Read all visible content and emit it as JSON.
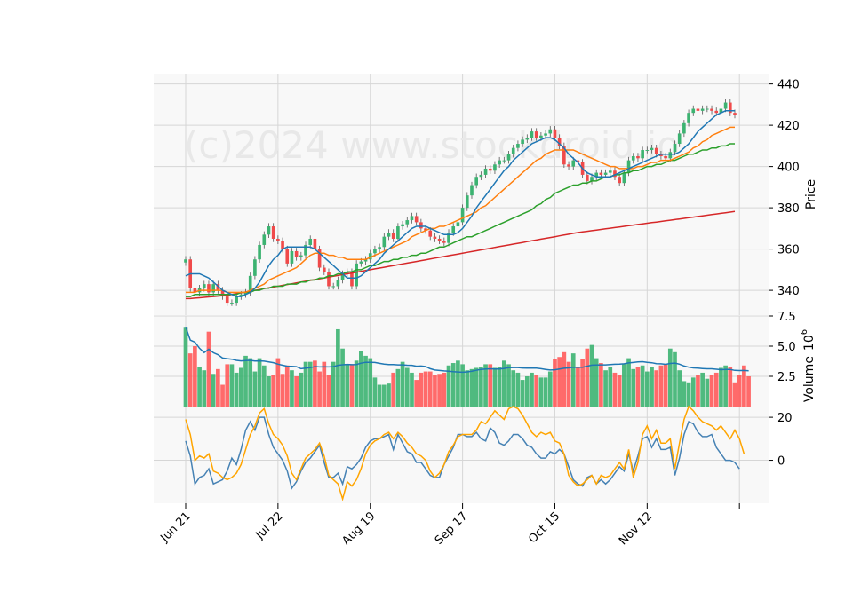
{
  "watermark": "(c)2024 www.stockdroid.io",
  "chart_data": [
    {
      "type": "candlestick",
      "panel": "price",
      "ylabel": "Price",
      "ylim": [
        328,
        445
      ],
      "yticks": [
        340,
        360,
        380,
        400,
        420,
        440
      ],
      "grid": true,
      "x_dates": [
        "Jun 21",
        "Jun 24",
        "Jun 25",
        "Jun 26",
        "Jun 27",
        "Jun 28",
        "Jul 1",
        "Jul 2",
        "Jul 3",
        "Jul 5",
        "Jul 8",
        "Jul 9",
        "Jul 10",
        "Jul 11",
        "Jul 12",
        "Jul 15",
        "Jul 16",
        "Jul 17",
        "Jul 18",
        "Jul 19",
        "Jul 22",
        "Jul 23",
        "Jul 24",
        "Jul 25",
        "Jul 26",
        "Jul 29",
        "Jul 30",
        "Jul 31",
        "Aug 1",
        "Aug 2",
        "Aug 5",
        "Aug 6",
        "Aug 7",
        "Aug 8",
        "Aug 9",
        "Aug 12",
        "Aug 13",
        "Aug 14",
        "Aug 15",
        "Aug 16",
        "Aug 19",
        "Aug 20",
        "Aug 21",
        "Aug 22",
        "Aug 23",
        "Aug 26",
        "Aug 27",
        "Aug 28",
        "Aug 29",
        "Aug 30",
        "Sep 3",
        "Sep 4",
        "Sep 5",
        "Sep 6",
        "Sep 9",
        "Sep 10",
        "Sep 11",
        "Sep 12",
        "Sep 13",
        "Sep 16",
        "Sep 17",
        "Sep 18",
        "Sep 19",
        "Sep 20",
        "Sep 23",
        "Sep 24",
        "Sep 25",
        "Sep 26",
        "Sep 27",
        "Sep 30",
        "Oct 1",
        "Oct 2",
        "Oct 3",
        "Oct 4",
        "Oct 7",
        "Oct 8",
        "Oct 9",
        "Oct 10",
        "Oct 11",
        "Oct 14",
        "Oct 15",
        "Oct 16",
        "Oct 17",
        "Oct 18",
        "Oct 21",
        "Oct 22",
        "Oct 23",
        "Oct 24",
        "Oct 25",
        "Oct 28",
        "Oct 29",
        "Oct 30",
        "Oct 31",
        "Nov 1",
        "Nov 4",
        "Nov 5",
        "Nov 6",
        "Nov 7",
        "Nov 8",
        "Nov 11",
        "Nov 12",
        "Nov 13",
        "Nov 14",
        "Nov 15",
        "Nov 18",
        "Nov 19",
        "Nov 20",
        "Nov 21",
        "Nov 22",
        "Nov 25",
        "Nov 26",
        "Nov 27",
        "Nov 29",
        "Dec 2",
        "Dec 3",
        "Dec 4",
        "Dec 5",
        "Dec 6",
        "Dec 9",
        "Dec 10"
      ],
      "xticks": [
        {
          "label": "Jun 21",
          "index": 0
        },
        {
          "label": "Jul 22",
          "index": 20
        },
        {
          "label": "Aug 19",
          "index": 40
        },
        {
          "label": "Sep 17",
          "index": 60
        },
        {
          "label": "Oct 15",
          "index": 80
        },
        {
          "label": "Nov 12",
          "index": 100
        },
        {
          "label": "",
          "index": 120
        }
      ],
      "close": [
        355,
        341,
        339,
        341,
        343,
        339,
        343,
        340,
        337,
        334,
        334,
        337,
        338,
        339,
        347,
        355,
        362,
        367,
        371,
        365,
        364,
        360,
        353,
        359,
        356,
        357,
        362,
        365,
        360,
        351,
        349,
        342,
        342,
        345,
        348,
        349,
        342,
        353,
        354,
        355,
        358,
        360,
        361,
        366,
        368,
        365,
        371,
        372,
        374,
        376,
        373,
        370,
        369,
        366,
        365,
        364,
        363,
        368,
        371,
        373,
        380,
        386,
        391,
        395,
        396,
        399,
        398,
        401,
        403,
        403,
        406,
        409,
        411,
        413,
        414,
        417,
        414,
        415,
        416,
        418,
        414,
        410,
        401,
        400,
        403,
        402,
        396,
        393,
        395,
        397,
        396,
        397,
        398,
        395,
        392,
        397,
        403,
        405,
        404,
        408,
        408,
        409,
        406,
        405,
        404,
        407,
        411,
        416,
        421,
        426,
        428,
        427,
        428,
        428,
        427,
        426,
        428,
        431,
        426,
        425
      ],
      "ma_colors": {
        "ma10": "#1f77b4",
        "ma20": "#ff7f0e",
        "ma50": "#2ca02c",
        "ma200": "#d62728"
      },
      "ma10": [
        347,
        348,
        348,
        348,
        347,
        346,
        344,
        342,
        340,
        339,
        338,
        337,
        337,
        338,
        339,
        341,
        344,
        348,
        352,
        355,
        357,
        360,
        361,
        361,
        361,
        361,
        361,
        361,
        360,
        358,
        356,
        354,
        352,
        350,
        348,
        346,
        346,
        346,
        347,
        349,
        351,
        353,
        355,
        358,
        360,
        362,
        364,
        366,
        368,
        370,
        371,
        371,
        371,
        370,
        369,
        368,
        367,
        367,
        367,
        368,
        370,
        373,
        376,
        380,
        383,
        386,
        389,
        392,
        395,
        398,
        400,
        403,
        405,
        407,
        409,
        411,
        412,
        413,
        414,
        414,
        413,
        411,
        409,
        406,
        404,
        402,
        399,
        397,
        396,
        395,
        395,
        395,
        395,
        396,
        397,
        398,
        399,
        400,
        401,
        402,
        403,
        404,
        405,
        406,
        406,
        406,
        406,
        407,
        409,
        411,
        414,
        417,
        419,
        421,
        423,
        425,
        426,
        427,
        427,
        427
      ],
      "ma20": [
        339,
        339,
        339,
        340,
        340,
        340,
        340,
        340,
        340,
        339,
        339,
        339,
        339,
        339,
        340,
        341,
        342,
        343,
        345,
        346,
        347,
        348,
        349,
        350,
        351,
        353,
        355,
        357,
        358,
        358,
        358,
        357,
        357,
        356,
        356,
        355,
        355,
        355,
        355,
        355,
        356,
        357,
        358,
        359,
        360,
        361,
        362,
        363,
        364,
        366,
        367,
        368,
        369,
        370,
        370,
        371,
        371,
        372,
        373,
        374,
        375,
        376,
        377,
        378,
        380,
        381,
        383,
        385,
        387,
        389,
        391,
        393,
        395,
        397,
        399,
        401,
        403,
        404,
        406,
        407,
        408,
        408,
        408,
        408,
        408,
        407,
        406,
        405,
        404,
        403,
        402,
        401,
        400,
        400,
        399,
        399,
        399,
        399,
        400,
        400,
        401,
        402,
        402,
        403,
        403,
        403,
        404,
        405,
        406,
        407,
        409,
        410,
        412,
        413,
        415,
        416,
        417,
        418,
        419,
        419
      ],
      "ma50": [
        337,
        337,
        338,
        338,
        338,
        338,
        338,
        338,
        338,
        338,
        338,
        338,
        339,
        339,
        339,
        340,
        340,
        341,
        341,
        342,
        342,
        342,
        343,
        343,
        343,
        344,
        344,
        345,
        345,
        346,
        346,
        347,
        347,
        348,
        348,
        349,
        349,
        350,
        350,
        351,
        352,
        352,
        353,
        354,
        354,
        355,
        355,
        356,
        356,
        357,
        357,
        358,
        358,
        359,
        360,
        361,
        361,
        362,
        363,
        364,
        365,
        366,
        366,
        367,
        368,
        369,
        370,
        371,
        372,
        373,
        374,
        375,
        376,
        377,
        378,
        379,
        381,
        382,
        384,
        385,
        387,
        388,
        389,
        390,
        391,
        391,
        392,
        392,
        393,
        393,
        394,
        395,
        395,
        396,
        396,
        397,
        397,
        398,
        398,
        399,
        400,
        400,
        401,
        401,
        402,
        403,
        403,
        404,
        405,
        406,
        406,
        407,
        408,
        408,
        409,
        409,
        410,
        410,
        411,
        411
      ],
      "ma200": [
        336,
        336,
        336.2,
        336.4,
        336.6,
        336.8,
        337,
        337.2,
        337.4,
        337.6,
        338,
        338.4,
        338.8,
        339.2,
        339.6,
        340,
        340.4,
        340.8,
        341.2,
        341.6,
        342,
        342.4,
        342.8,
        343.2,
        343.6,
        344,
        344.4,
        344.8,
        345.2,
        345.6,
        346,
        346.4,
        346.8,
        347.2,
        347.6,
        348,
        348.4,
        348.8,
        349.2,
        349.6,
        350,
        350.4,
        350.8,
        351.2,
        351.6,
        352,
        352.4,
        352.8,
        353.2,
        353.6,
        354,
        354.4,
        354.8,
        355.2,
        355.6,
        356,
        356.4,
        356.8,
        357.2,
        357.6,
        358,
        358.4,
        358.8,
        359.2,
        359.6,
        360,
        360.4,
        360.8,
        361.2,
        361.6,
        362,
        362.4,
        362.8,
        363.2,
        363.6,
        364,
        364.4,
        364.8,
        365.2,
        365.6,
        366,
        366.4,
        366.8,
        367.2,
        367.6,
        368,
        368.3,
        368.6,
        368.9,
        369.2,
        369.5,
        369.8,
        370.1,
        370.4,
        370.7,
        371,
        371.3,
        371.6,
        371.9,
        372.2,
        372.5,
        372.8,
        373.1,
        373.4,
        373.7,
        374,
        374.3,
        374.6,
        374.9,
        375.2,
        375.5,
        375.8,
        376.1,
        376.4,
        376.7,
        377,
        377.3,
        377.6,
        377.9,
        378.2
      ]
    },
    {
      "type": "bar",
      "panel": "volume",
      "ylabel": "Volume",
      "yunit": "10^6",
      "ylim": [
        0,
        7.5
      ],
      "yticks": [
        2.5,
        5.0,
        7.5
      ],
      "values": [
        6.6,
        4.4,
        5.0,
        3.3,
        3.0,
        6.2,
        2.7,
        3.1,
        1.8,
        3.5,
        3.5,
        2.8,
        3.2,
        4.2,
        4.0,
        2.9,
        4.0,
        3.4,
        2.5,
        2.6,
        4.0,
        2.7,
        3.4,
        3.0,
        2.5,
        2.8,
        3.7,
        3.7,
        3.8,
        2.9,
        3.7,
        2.6,
        3.7,
        6.4,
        4.8,
        3.5,
        3.5,
        3.8,
        4.6,
        4.2,
        4.0,
        2.4,
        1.8,
        1.8,
        1.9,
        2.8,
        3.1,
        3.7,
        3.2,
        2.8,
        2.2,
        2.8,
        2.9,
        2.9,
        2.6,
        2.7,
        2.8,
        3.4,
        3.6,
        3.8,
        3.5,
        3.0,
        3.1,
        3.2,
        3.3,
        3.5,
        3.5,
        3.2,
        3.3,
        3.8,
        3.5,
        3.0,
        2.8,
        2.2,
        2.5,
        2.8,
        2.6,
        2.4,
        2.4,
        2.9,
        3.9,
        4.1,
        4.5,
        3.7,
        4.4,
        3.3,
        3.9,
        4.8,
        5.1,
        4.0,
        3.6,
        3.0,
        3.3,
        2.8,
        2.6,
        3.5,
        4.0,
        3.1,
        3.3,
        3.4,
        2.9,
        3.3,
        3.0,
        3.4,
        3.5,
        4.8,
        4.5,
        3.0,
        2.1,
        2.0,
        2.4,
        2.6,
        2.8,
        2.3,
        2.6,
        2.8,
        3.2,
        3.4,
        3.3,
        2.0,
        2.6,
        3.4,
        2.5
      ],
      "ma_color": "#1f77b4"
    },
    {
      "type": "line",
      "panel": "oscillator",
      "yticks": [
        0,
        20
      ],
      "ylim": [
        -20,
        25
      ],
      "series": [
        {
          "color": "#4682b4",
          "values": [
            9,
            2,
            -11,
            -8,
            -7,
            -4,
            -11,
            -10,
            -9,
            -5,
            1,
            -2,
            5,
            14,
            18,
            14,
            20,
            20,
            12,
            6,
            3,
            0,
            -5,
            -13,
            -10,
            -5,
            -1,
            1,
            4,
            7,
            -1,
            -8,
            -8,
            -6,
            -11,
            -3,
            -4,
            -2,
            1,
            6,
            9,
            10,
            10,
            11,
            12,
            5,
            12,
            8,
            4,
            3,
            -1,
            -1,
            -4,
            -7,
            -8,
            -8,
            -2,
            2,
            6,
            12,
            12,
            11,
            11,
            13,
            10,
            9,
            15,
            13,
            8,
            7,
            9,
            12,
            12,
            10,
            7,
            6,
            3,
            1,
            1,
            4,
            3,
            5,
            3,
            -3,
            -9,
            -11,
            -12,
            -8,
            -7,
            -11,
            -9,
            -11,
            -9,
            -6,
            -3,
            -5,
            3,
            -5,
            2,
            10,
            11,
            6,
            10,
            5,
            5,
            6,
            -7,
            1,
            12,
            18,
            17,
            13,
            11,
            11,
            12,
            6,
            3,
            0,
            0,
            -1,
            -4
          ]
        },
        {
          "color": "#ffa500",
          "values": [
            19,
            12,
            0,
            2,
            1,
            3,
            -5,
            -6,
            -8,
            -9,
            -8,
            -6,
            -2,
            5,
            12,
            16,
            22,
            24,
            17,
            12,
            10,
            7,
            2,
            -6,
            -9,
            -4,
            1,
            3,
            5,
            8,
            2,
            -7,
            -9,
            -11,
            -18,
            -10,
            -12,
            -9,
            -4,
            3,
            7,
            9,
            10,
            12,
            13,
            10,
            13,
            11,
            8,
            6,
            3,
            2,
            0,
            -5,
            -8,
            -6,
            -2,
            4,
            7,
            11,
            12,
            12,
            12,
            14,
            18,
            17,
            20,
            23,
            21,
            19,
            24,
            25,
            24,
            21,
            17,
            13,
            11,
            13,
            12,
            13,
            9,
            8,
            3,
            -7,
            -10,
            -12,
            -11,
            -9,
            -7,
            -11,
            -7,
            -8,
            -7,
            -4,
            -1,
            -4,
            5,
            -8,
            -1,
            12,
            16,
            10,
            14,
            8,
            8,
            10,
            -4,
            8,
            19,
            25,
            23,
            20,
            18,
            17,
            16,
            14,
            16,
            13,
            10,
            14,
            10,
            3
          ]
        }
      ]
    }
  ]
}
